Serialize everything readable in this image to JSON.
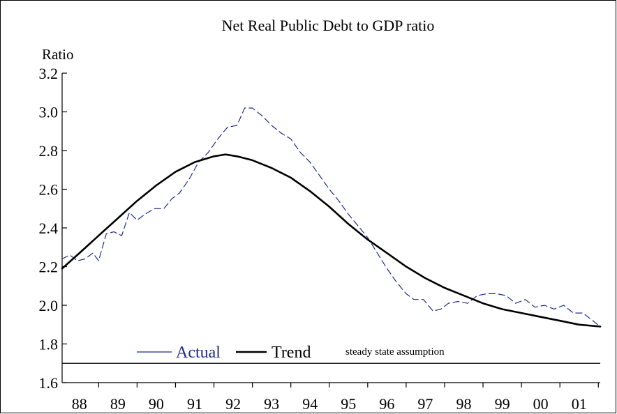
{
  "chart_data": {
    "type": "line",
    "title": "Net Real Public Debt to GDP ratio",
    "ylabel": "Ratio",
    "xlabel": "",
    "xlim": [
      1987.05,
      2001.05
    ],
    "ylim": [
      1.6,
      3.2
    ],
    "y_ticks": [
      "1.6",
      "1.8",
      "2.0",
      "2.2",
      "2.4",
      "2.6",
      "2.8",
      "3.0",
      "3.2"
    ],
    "x_ticks": [
      {
        "label": "88",
        "value": 1988
      },
      {
        "label": "89",
        "value": 1989
      },
      {
        "label": "90",
        "value": 1990
      },
      {
        "label": "91",
        "value": 1991
      },
      {
        "label": "92",
        "value": 1992
      },
      {
        "label": "93",
        "value": 1993
      },
      {
        "label": "94",
        "value": 1994
      },
      {
        "label": "95",
        "value": 1995
      },
      {
        "label": "96",
        "value": 1996
      },
      {
        "label": "97",
        "value": 1997
      },
      {
        "label": "98",
        "value": 1998
      },
      {
        "label": "99",
        "value": 1999
      },
      {
        "label": "00",
        "value": 2000
      },
      {
        "label": "01",
        "value": 2001
      }
    ],
    "legend": {
      "placement": "bottom-left",
      "entries": [
        {
          "name": "Actual",
          "color": "#1f2b8f",
          "style": "dashed"
        },
        {
          "name": "Trend",
          "color": "#000000",
          "style": "solid"
        }
      ]
    },
    "reference_line": {
      "label": "steady state assumption",
      "y": 1.7
    },
    "series": [
      {
        "name": "Actual",
        "color": "#1f2b8f",
        "style": "dashed",
        "points": [
          [
            1987.05,
            2.24
          ],
          [
            1987.25,
            2.26
          ],
          [
            1987.45,
            2.23
          ],
          [
            1987.65,
            2.24
          ],
          [
            1987.85,
            2.27
          ],
          [
            1988.0,
            2.23
          ],
          [
            1988.2,
            2.37
          ],
          [
            1988.4,
            2.38
          ],
          [
            1988.6,
            2.36
          ],
          [
            1988.8,
            2.48
          ],
          [
            1989.0,
            2.44
          ],
          [
            1989.2,
            2.47
          ],
          [
            1989.45,
            2.5
          ],
          [
            1989.7,
            2.5
          ],
          [
            1989.9,
            2.55
          ],
          [
            1990.1,
            2.58
          ],
          [
            1990.35,
            2.65
          ],
          [
            1990.6,
            2.74
          ],
          [
            1990.85,
            2.79
          ],
          [
            1991.1,
            2.86
          ],
          [
            1991.35,
            2.92
          ],
          [
            1991.6,
            2.93
          ],
          [
            1991.8,
            3.02
          ],
          [
            1992.0,
            3.02
          ],
          [
            1992.25,
            2.98
          ],
          [
            1992.5,
            2.93
          ],
          [
            1992.75,
            2.89
          ],
          [
            1993.0,
            2.86
          ],
          [
            1993.25,
            2.79
          ],
          [
            1993.5,
            2.74
          ],
          [
            1993.75,
            2.67
          ],
          [
            1994.0,
            2.6
          ],
          [
            1994.25,
            2.54
          ],
          [
            1994.5,
            2.47
          ],
          [
            1994.75,
            2.41
          ],
          [
            1995.0,
            2.35
          ],
          [
            1995.25,
            2.27
          ],
          [
            1995.5,
            2.19
          ],
          [
            1995.75,
            2.12
          ],
          [
            1996.0,
            2.06
          ],
          [
            1996.2,
            2.03
          ],
          [
            1996.45,
            2.03
          ],
          [
            1996.7,
            1.97
          ],
          [
            1996.9,
            1.98
          ],
          [
            1997.1,
            2.01
          ],
          [
            1997.35,
            2.02
          ],
          [
            1997.6,
            2.01
          ],
          [
            1997.85,
            2.05
          ],
          [
            1998.1,
            2.06
          ],
          [
            1998.35,
            2.06
          ],
          [
            1998.6,
            2.05
          ],
          [
            1998.85,
            2.01
          ],
          [
            1999.1,
            2.03
          ],
          [
            1999.35,
            1.99
          ],
          [
            1999.6,
            2.0
          ],
          [
            1999.85,
            1.98
          ],
          [
            2000.1,
            2.0
          ],
          [
            2000.35,
            1.96
          ],
          [
            2000.6,
            1.96
          ],
          [
            2001.05,
            1.89
          ]
        ]
      },
      {
        "name": "Trend",
        "color": "#000000",
        "style": "solid",
        "points": [
          [
            1987.05,
            2.19
          ],
          [
            1987.5,
            2.27
          ],
          [
            1988.0,
            2.36
          ],
          [
            1988.5,
            2.45
          ],
          [
            1989.0,
            2.54
          ],
          [
            1989.5,
            2.62
          ],
          [
            1990.0,
            2.69
          ],
          [
            1990.5,
            2.74
          ],
          [
            1991.0,
            2.77
          ],
          [
            1991.3,
            2.78
          ],
          [
            1991.6,
            2.77
          ],
          [
            1992.0,
            2.75
          ],
          [
            1992.5,
            2.71
          ],
          [
            1993.0,
            2.66
          ],
          [
            1993.5,
            2.59
          ],
          [
            1994.0,
            2.51
          ],
          [
            1994.5,
            2.42
          ],
          [
            1995.0,
            2.34
          ],
          [
            1995.5,
            2.27
          ],
          [
            1996.0,
            2.2
          ],
          [
            1996.5,
            2.14
          ],
          [
            1997.0,
            2.09
          ],
          [
            1997.5,
            2.05
          ],
          [
            1998.0,
            2.01
          ],
          [
            1998.5,
            1.98
          ],
          [
            1999.0,
            1.96
          ],
          [
            1999.5,
            1.94
          ],
          [
            2000.0,
            1.92
          ],
          [
            2000.5,
            1.9
          ],
          [
            2001.05,
            1.89
          ]
        ]
      }
    ]
  }
}
